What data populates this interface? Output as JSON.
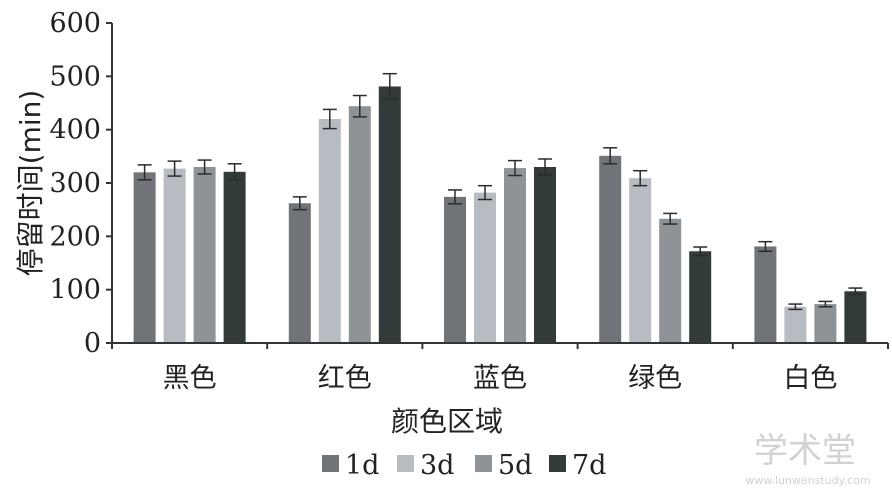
{
  "chart_data": {
    "type": "bar",
    "xlabel": "颜色区域",
    "ylabel": "停留时间(min)",
    "ylim": [
      0,
      600
    ],
    "yticks": [
      0,
      100,
      200,
      300,
      400,
      500,
      600
    ],
    "categories": [
      "黑色",
      "红色",
      "蓝色",
      "绿色",
      "白色"
    ],
    "series": [
      {
        "name": "1d",
        "color": "#707478",
        "values": [
          320,
          262,
          274,
          351,
          181
        ],
        "errors": [
          14,
          12,
          13,
          15,
          9
        ]
      },
      {
        "name": "3d",
        "color": "#b7bcc2",
        "values": [
          327,
          420,
          282,
          309,
          68
        ],
        "errors": [
          14,
          18,
          13,
          14,
          5
        ]
      },
      {
        "name": "5d",
        "color": "#8e9398",
        "values": [
          330,
          444,
          328,
          233,
          73
        ],
        "errors": [
          13,
          20,
          14,
          10,
          5
        ]
      },
      {
        "name": "7d",
        "color": "#333a3a",
        "values": [
          321,
          481,
          330,
          172,
          97
        ],
        "errors": [
          15,
          24,
          15,
          8,
          6
        ]
      }
    ],
    "grid": false,
    "legend_position": "bottom"
  },
  "watermark": {
    "text": "学术堂",
    "subtext": "www.lunwenstudy.com"
  }
}
